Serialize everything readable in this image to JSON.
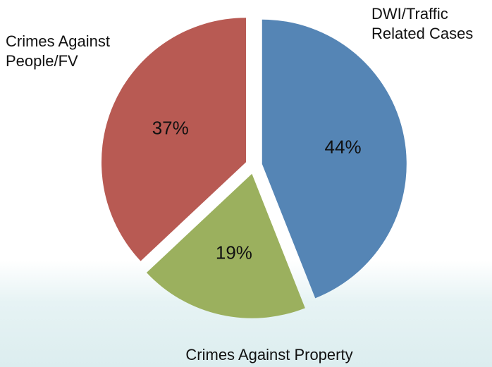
{
  "chart_data": {
    "type": "pie",
    "categories": [
      "DWI/Traffic Related Cases",
      "Crimes Against Property",
      "Crimes Against People/FV"
    ],
    "values": [
      44,
      19,
      37
    ],
    "value_labels": [
      "44%",
      "19%",
      "37%"
    ],
    "colors": [
      "#5585b5",
      "#9bb05e",
      "#b85a53"
    ]
  }
}
